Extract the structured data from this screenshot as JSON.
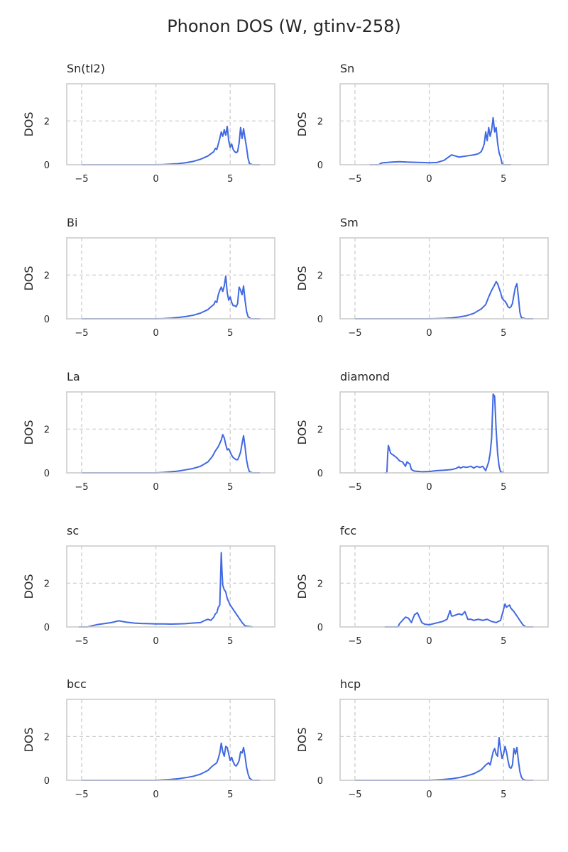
{
  "figure": {
    "title": "Phonon DOS (W, gtinv-258)",
    "line_color": "#4169e1",
    "grid_color": "#cccccc",
    "frame_color": "#cccccc"
  },
  "chart_data": [
    {
      "type": "line",
      "title": "Sn(tI2)",
      "xlabel": "",
      "ylabel": "DOS",
      "xlim": [
        -6,
        8
      ],
      "ylim": [
        0,
        3.7
      ],
      "xticks": [
        -5,
        0,
        5
      ],
      "yticks": [
        0,
        2
      ],
      "grid": true,
      "x": [
        -5,
        -1,
        0,
        0.5,
        1,
        1.5,
        2,
        2.5,
        3,
        3.5,
        3.8,
        3.9,
        4.0,
        4.1,
        4.2,
        4.3,
        4.4,
        4.5,
        4.6,
        4.7,
        4.8,
        4.9,
        5.0,
        5.1,
        5.2,
        5.3,
        5.4,
        5.5,
        5.6,
        5.7,
        5.8,
        5.9,
        6.0,
        6.1,
        6.2,
        6.3,
        6.5,
        7
      ],
      "y": [
        0,
        0,
        0,
        0.01,
        0.03,
        0.05,
        0.09,
        0.15,
        0.25,
        0.4,
        0.55,
        0.6,
        0.75,
        0.7,
        0.95,
        1.2,
        1.5,
        1.3,
        1.6,
        1.35,
        1.75,
        1.1,
        0.8,
        0.95,
        0.7,
        0.6,
        0.55,
        0.6,
        1.0,
        1.7,
        1.2,
        1.65,
        1.2,
        0.8,
        0.3,
        0.05,
        0,
        0
      ]
    },
    {
      "type": "line",
      "title": "Sn",
      "xlabel": "",
      "ylabel": "DOS",
      "xlim": [
        -6,
        8
      ],
      "ylim": [
        0,
        3.7
      ],
      "xticks": [
        -5,
        0,
        5
      ],
      "yticks": [
        0,
        2
      ],
      "grid": true,
      "x": [
        -4,
        -3.4,
        -3.2,
        -2.5,
        -2,
        -1.5,
        -1,
        -0.5,
        0,
        0.5,
        1,
        1.3,
        1.5,
        2,
        2.5,
        3,
        3.3,
        3.5,
        3.6,
        3.7,
        3.8,
        3.9,
        4.0,
        4.1,
        4.2,
        4.3,
        4.4,
        4.5,
        4.6,
        4.7,
        4.8,
        4.9,
        5.0,
        5.5
      ],
      "y": [
        0,
        0,
        0.08,
        0.12,
        0.14,
        0.12,
        0.11,
        0.1,
        0.09,
        0.1,
        0.2,
        0.35,
        0.45,
        0.35,
        0.4,
        0.45,
        0.5,
        0.6,
        0.75,
        0.95,
        1.5,
        1.1,
        1.7,
        1.3,
        1.6,
        2.15,
        1.5,
        1.7,
        1.0,
        0.55,
        0.35,
        0.05,
        0,
        0
      ]
    },
    {
      "type": "line",
      "title": "Bi",
      "xlabel": "",
      "ylabel": "DOS",
      "xlim": [
        -6,
        8
      ],
      "ylim": [
        0,
        3.7
      ],
      "xticks": [
        -5,
        0,
        5
      ],
      "yticks": [
        0,
        2
      ],
      "grid": true,
      "x": [
        -5,
        0,
        0.5,
        1,
        1.5,
        2,
        2.5,
        3,
        3.5,
        3.8,
        3.9,
        4.0,
        4.1,
        4.2,
        4.3,
        4.4,
        4.5,
        4.6,
        4.7,
        4.8,
        4.9,
        5.0,
        5.1,
        5.2,
        5.3,
        5.4,
        5.5,
        5.6,
        5.7,
        5.8,
        5.9,
        6.0,
        6.1,
        6.2,
        6.4,
        7
      ],
      "y": [
        0,
        0,
        0.01,
        0.03,
        0.06,
        0.1,
        0.16,
        0.26,
        0.42,
        0.6,
        0.65,
        0.8,
        0.75,
        1.1,
        1.3,
        1.45,
        1.25,
        1.5,
        1.95,
        1.2,
        0.85,
        1.0,
        0.75,
        0.6,
        0.6,
        0.55,
        0.7,
        1.45,
        1.3,
        1.1,
        1.5,
        0.85,
        0.35,
        0.1,
        0,
        0
      ]
    },
    {
      "type": "line",
      "title": "Sm",
      "xlabel": "",
      "ylabel": "DOS",
      "xlim": [
        -6,
        8
      ],
      "ylim": [
        0,
        3.7
      ],
      "xticks": [
        -5,
        0,
        5
      ],
      "yticks": [
        0,
        2
      ],
      "grid": true,
      "x": [
        -5,
        0,
        0.5,
        1,
        1.5,
        2,
        2.5,
        3,
        3.5,
        3.8,
        4.0,
        4.2,
        4.4,
        4.5,
        4.6,
        4.7,
        4.8,
        4.9,
        5.0,
        5.1,
        5.2,
        5.3,
        5.4,
        5.5,
        5.6,
        5.7,
        5.8,
        5.9,
        6.0,
        6.1,
        6.2,
        6.5,
        7
      ],
      "y": [
        0,
        0,
        0.01,
        0.02,
        0.04,
        0.08,
        0.14,
        0.25,
        0.45,
        0.65,
        1.0,
        1.3,
        1.55,
        1.7,
        1.6,
        1.4,
        1.2,
        0.95,
        0.85,
        0.8,
        0.7,
        0.55,
        0.5,
        0.55,
        0.7,
        1.1,
        1.45,
        1.6,
        1.0,
        0.3,
        0.05,
        0,
        0
      ]
    },
    {
      "type": "line",
      "title": "La",
      "xlabel": "",
      "ylabel": "DOS",
      "xlim": [
        -6,
        8
      ],
      "ylim": [
        0,
        3.7
      ],
      "xticks": [
        -5,
        0,
        5
      ],
      "yticks": [
        0,
        2
      ],
      "grid": true,
      "x": [
        -5,
        0,
        0.5,
        1,
        1.5,
        2,
        2.5,
        3,
        3.5,
        3.8,
        4.0,
        4.2,
        4.3,
        4.4,
        4.5,
        4.6,
        4.7,
        4.8,
        4.9,
        5.0,
        5.1,
        5.2,
        5.3,
        5.4,
        5.5,
        5.6,
        5.7,
        5.8,
        5.9,
        6.0,
        6.1,
        6.2,
        6.3,
        6.5,
        7
      ],
      "y": [
        0,
        0,
        0.02,
        0.05,
        0.08,
        0.14,
        0.2,
        0.3,
        0.5,
        0.75,
        1.0,
        1.2,
        1.35,
        1.5,
        1.75,
        1.6,
        1.3,
        1.05,
        1.1,
        0.95,
        0.8,
        0.7,
        0.65,
        0.6,
        0.6,
        0.75,
        0.95,
        1.35,
        1.7,
        1.2,
        0.6,
        0.25,
        0.05,
        0,
        0
      ]
    },
    {
      "type": "line",
      "title": "diamond",
      "xlabel": "",
      "ylabel": "DOS",
      "xlim": [
        -6,
        8
      ],
      "ylim": [
        0,
        3.7
      ],
      "xticks": [
        -5,
        0,
        5
      ],
      "yticks": [
        0,
        2
      ],
      "grid": true,
      "x": [
        -3,
        -2.85,
        -2.8,
        -2.75,
        -2.6,
        -2.4,
        -2.2,
        -2.0,
        -1.8,
        -1.6,
        -1.5,
        -1.3,
        -1.2,
        -1.0,
        -0.5,
        0,
        0.5,
        1.0,
        1.5,
        1.8,
        2.0,
        2.1,
        2.3,
        2.5,
        2.8,
        3.0,
        3.2,
        3.4,
        3.6,
        3.8,
        4.0,
        4.1,
        4.2,
        4.3,
        4.35,
        4.4,
        4.5,
        4.6,
        4.7,
        4.8,
        5.0
      ],
      "y": [
        0,
        0,
        0.8,
        1.25,
        0.9,
        0.8,
        0.7,
        0.55,
        0.5,
        0.3,
        0.5,
        0.4,
        0.15,
        0.08,
        0.05,
        0.06,
        0.1,
        0.12,
        0.15,
        0.2,
        0.28,
        0.22,
        0.28,
        0.25,
        0.3,
        0.22,
        0.3,
        0.25,
        0.3,
        0.1,
        0.5,
        0.9,
        1.6,
        3.6,
        3.55,
        3.5,
        2.0,
        0.9,
        0.3,
        0.05,
        0
      ]
    },
    {
      "type": "line",
      "title": "sc",
      "xlabel": "",
      "ylabel": "DOS",
      "xlim": [
        -6,
        8
      ],
      "ylim": [
        0,
        3.7
      ],
      "xticks": [
        -5,
        0,
        5
      ],
      "yticks": [
        0,
        2
      ],
      "grid": true,
      "x": [
        -5.2,
        -4.6,
        -4.3,
        -4.0,
        -3.5,
        -3.0,
        -2.5,
        -2.0,
        -1.5,
        -1.0,
        -0.5,
        0,
        0.5,
        1,
        1.5,
        2,
        2.5,
        3,
        3.3,
        3.5,
        3.7,
        3.9,
        4.0,
        4.1,
        4.2,
        4.3,
        4.4,
        4.45,
        4.5,
        4.6,
        4.7,
        4.8,
        5.0,
        5.2,
        5.5,
        5.8,
        6.0,
        6.5
      ],
      "y": [
        0,
        0,
        0.05,
        0.1,
        0.15,
        0.2,
        0.28,
        0.22,
        0.18,
        0.16,
        0.15,
        0.14,
        0.14,
        0.13,
        0.14,
        0.15,
        0.18,
        0.2,
        0.3,
        0.35,
        0.3,
        0.45,
        0.6,
        0.65,
        0.9,
        1.0,
        3.4,
        2.5,
        1.9,
        1.7,
        1.6,
        1.3,
        1.0,
        0.8,
        0.5,
        0.2,
        0.05,
        0
      ]
    },
    {
      "type": "line",
      "title": "fcc",
      "xlabel": "",
      "ylabel": "DOS",
      "xlim": [
        -6,
        8
      ],
      "ylim": [
        0,
        3.7
      ],
      "xticks": [
        -5,
        0,
        5
      ],
      "yticks": [
        0,
        2
      ],
      "grid": true,
      "x": [
        -3,
        -2.1,
        -2.0,
        -1.8,
        -1.6,
        -1.4,
        -1.2,
        -1.0,
        -0.8,
        -0.6,
        -0.5,
        -0.3,
        0,
        0.3,
        0.6,
        0.9,
        1.2,
        1.4,
        1.5,
        1.6,
        1.8,
        2.0,
        2.2,
        2.4,
        2.6,
        2.8,
        3.0,
        3.3,
        3.6,
        3.9,
        4.2,
        4.5,
        4.8,
        5.0,
        5.1,
        5.2,
        5.3,
        5.4,
        5.5,
        5.7,
        5.9,
        6.1,
        6.3,
        6.5,
        7.0
      ],
      "y": [
        0,
        0,
        0.15,
        0.3,
        0.45,
        0.4,
        0.2,
        0.55,
        0.65,
        0.35,
        0.2,
        0.12,
        0.1,
        0.15,
        0.2,
        0.25,
        0.35,
        0.75,
        0.5,
        0.5,
        0.55,
        0.6,
        0.55,
        0.7,
        0.35,
        0.35,
        0.3,
        0.35,
        0.3,
        0.35,
        0.25,
        0.2,
        0.3,
        0.8,
        1.05,
        0.9,
        0.95,
        1.0,
        0.85,
        0.7,
        0.5,
        0.3,
        0.1,
        0,
        0
      ]
    },
    {
      "type": "line",
      "title": "bcc",
      "xlabel": "",
      "ylabel": "DOS",
      "xlim": [
        -6,
        8
      ],
      "ylim": [
        0,
        3.7
      ],
      "xticks": [
        -5,
        0,
        5
      ],
      "yticks": [
        0,
        2
      ],
      "grid": true,
      "x": [
        -5,
        0,
        0.5,
        1,
        1.5,
        2,
        2.5,
        3,
        3.5,
        3.8,
        4.0,
        4.1,
        4.2,
        4.3,
        4.4,
        4.5,
        4.6,
        4.7,
        4.8,
        4.9,
        5.0,
        5.1,
        5.2,
        5.3,
        5.4,
        5.5,
        5.6,
        5.7,
        5.8,
        5.9,
        6.0,
        6.1,
        6.2,
        6.3,
        6.5,
        7
      ],
      "y": [
        0,
        0,
        0.02,
        0.04,
        0.07,
        0.12,
        0.18,
        0.28,
        0.45,
        0.65,
        0.75,
        0.8,
        1.0,
        1.25,
        1.7,
        1.3,
        1.1,
        1.55,
        1.5,
        1.2,
        0.9,
        1.05,
        0.85,
        0.7,
        0.65,
        0.75,
        0.9,
        1.3,
        1.25,
        1.5,
        1.1,
        0.6,
        0.3,
        0.1,
        0,
        0
      ]
    },
    {
      "type": "line",
      "title": "hcp",
      "xlabel": "",
      "ylabel": "DOS",
      "xlim": [
        -6,
        8
      ],
      "ylim": [
        0,
        3.7
      ],
      "xticks": [
        -5,
        0,
        5
      ],
      "yticks": [
        0,
        2
      ],
      "grid": true,
      "x": [
        -5,
        0,
        0.5,
        1,
        1.5,
        2,
        2.5,
        3,
        3.5,
        3.8,
        4.0,
        4.1,
        4.2,
        4.3,
        4.4,
        4.5,
        4.6,
        4.7,
        4.8,
        4.9,
        5.0,
        5.1,
        5.2,
        5.3,
        5.4,
        5.5,
        5.6,
        5.7,
        5.8,
        5.9,
        6.0,
        6.1,
        6.2,
        6.3,
        6.5,
        7
      ],
      "y": [
        0,
        0,
        0.02,
        0.04,
        0.07,
        0.12,
        0.2,
        0.3,
        0.48,
        0.7,
        0.8,
        0.7,
        1.0,
        1.3,
        1.45,
        1.2,
        1.1,
        1.95,
        1.4,
        1.0,
        1.2,
        1.55,
        1.3,
        0.9,
        0.6,
        0.55,
        0.7,
        1.45,
        1.2,
        1.5,
        0.9,
        0.4,
        0.15,
        0.05,
        0,
        0
      ]
    }
  ]
}
